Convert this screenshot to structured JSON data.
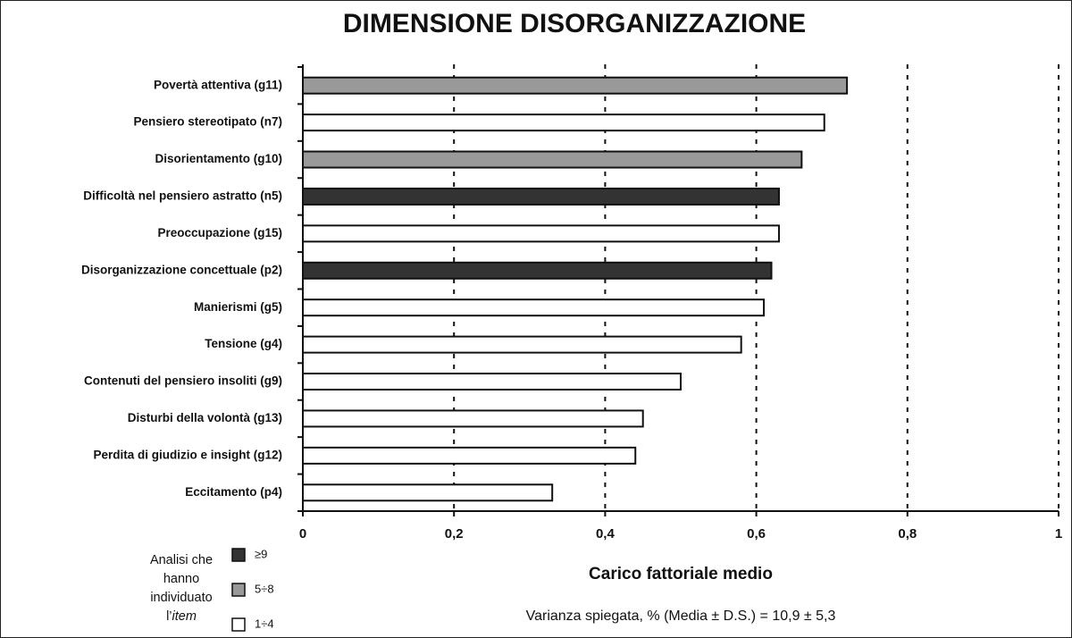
{
  "chart_data": {
    "type": "barh",
    "title": "DIMENSIONE DISORGANIZZAZIONE",
    "xlabel": "Carico fattoriale medio",
    "note": "Varianza spiegata, % (Media ± D.S.) = 10,9 ± 5,3",
    "categories": [
      "Povertà attentiva (g11)",
      "Pensiero stereotipato (n7)",
      "Disorientamento (g10)",
      "Difficoltà nel pensiero astratto (n5)",
      "Preoccupazione (g15)",
      "Disorganizzazione concettuale (p2)",
      "Manierismi (g5)",
      "Tensione (g4)",
      "Contenuti del pensiero insoliti (g9)",
      "Disturbi della volontà (g13)",
      "Perdita di giudizio e insight (g12)",
      "Eccitamento (p4)"
    ],
    "values": [
      0.72,
      0.69,
      0.66,
      0.63,
      0.63,
      0.62,
      0.61,
      0.58,
      0.5,
      0.45,
      0.44,
      0.33
    ],
    "bar_groups": [
      1,
      2,
      1,
      0,
      2,
      0,
      2,
      2,
      2,
      2,
      2,
      2
    ],
    "legend": [
      {
        "label": "≥9",
        "color": "#333333"
      },
      {
        "label": "5÷8",
        "color": "#999999"
      },
      {
        "label": "1÷4",
        "color": "#ffffff"
      }
    ],
    "legend_title": {
      "lines": [
        "Analisi che",
        "hanno",
        "individuato"
      ],
      "last_prefix": "l’",
      "last_italic": "item"
    },
    "xlim": [
      0,
      1
    ],
    "xticks": [
      0,
      {
        "value": 0.2,
        "label": "0,2"
      },
      {
        "value": 0.4,
        "label": "0,4"
      },
      {
        "value": 0.6,
        "label": "0,6"
      },
      {
        "value": 0.8,
        "label": "0,8"
      },
      1
    ],
    "grid": true
  }
}
